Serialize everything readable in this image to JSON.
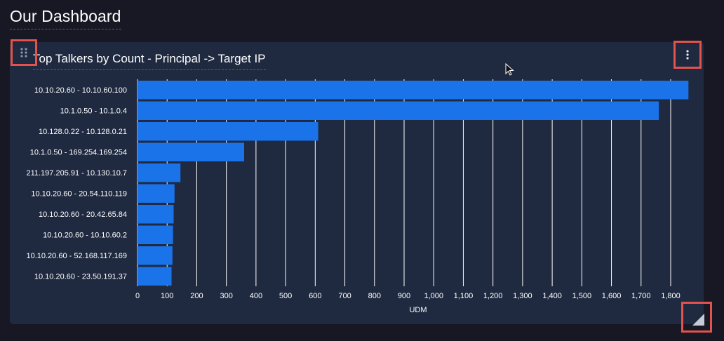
{
  "dashboard": {
    "title": "Our Dashboard"
  },
  "widget": {
    "title": "Top Talkers by Count - Principal -> Target IP",
    "icons": {
      "drag": "drag-handle-icon",
      "menu": "more-vert-icon",
      "resize": "resize-corner-icon"
    }
  },
  "colors": {
    "bar": "#1a73e8",
    "card": "#1f2a40",
    "highlight": "#e1534c"
  },
  "chart_data": {
    "type": "bar",
    "orientation": "horizontal",
    "categories": [
      "10.10.20.60 - 10.10.60.100",
      "10.1.0.50 - 10.1.0.4",
      "10.128.0.22 - 10.128.0.21",
      "10.1.0.50 - 169.254.169.254",
      "211.197.205.91 - 10.130.10.7",
      "10.10.20.60 - 20.54.110.119",
      "10.10.20.60 - 20.42.65.84",
      "10.10.20.60 - 10.10.60.2",
      "10.10.20.60 - 52.168.117.169",
      "10.10.20.60 - 23.50.191.37"
    ],
    "values": [
      1860,
      1760,
      610,
      360,
      145,
      125,
      122,
      120,
      118,
      115
    ],
    "xlabel": "UDM",
    "ylabel": "",
    "xlim": [
      0,
      1840
    ],
    "ticks": [
      "0",
      "100",
      "200",
      "300",
      "400",
      "500",
      "600",
      "700",
      "800",
      "900",
      "1,000",
      "1,100",
      "1,200",
      "1,300",
      "1,400",
      "1,500",
      "1,600",
      "1,700",
      "1,800"
    ],
    "grid": true
  }
}
